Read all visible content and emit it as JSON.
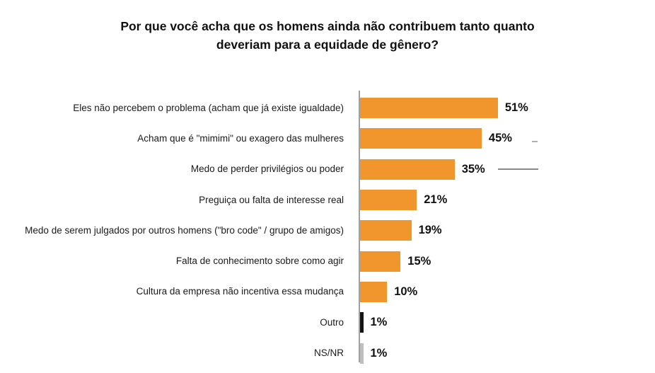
{
  "chart_data": {
    "type": "bar",
    "orientation": "horizontal",
    "title": "Por que você acha que os homens ainda não contribuem tanto quanto deveriam para a equidade de gênero?",
    "categories": [
      "Eles não percebem o problema (acham que já existe igualdade)",
      "Acham que é \"mimimi\" ou exagero das mulheres",
      "Medo de perder privilégios ou poder",
      "Preguiça ou falta de interesse real",
      "Medo de serem julgados por outros homens (\"bro code\" / grupo de amigos)",
      "Falta de conhecimento sobre como agir",
      "Cultura da empresa não incentiva essa mudança",
      "Outro",
      "NS/NR"
    ],
    "values": [
      51,
      45,
      35,
      21,
      19,
      15,
      10,
      1,
      1
    ],
    "value_labels": [
      "51%",
      "45%",
      "35%",
      "21%",
      "19%",
      "15%",
      "10%",
      "1%",
      "1%"
    ],
    "bar_colors": [
      "orange",
      "orange",
      "orange",
      "orange",
      "orange",
      "orange",
      "orange",
      "black",
      "gray"
    ],
    "xlim": [
      0,
      55
    ],
    "xlabel": "",
    "ylabel": "",
    "grid": false,
    "legend": false
  },
  "colors": {
    "orange": "#F0962D",
    "black": "#141414",
    "gray": "#BEBEBE",
    "axis": "#A0A0A0"
  }
}
